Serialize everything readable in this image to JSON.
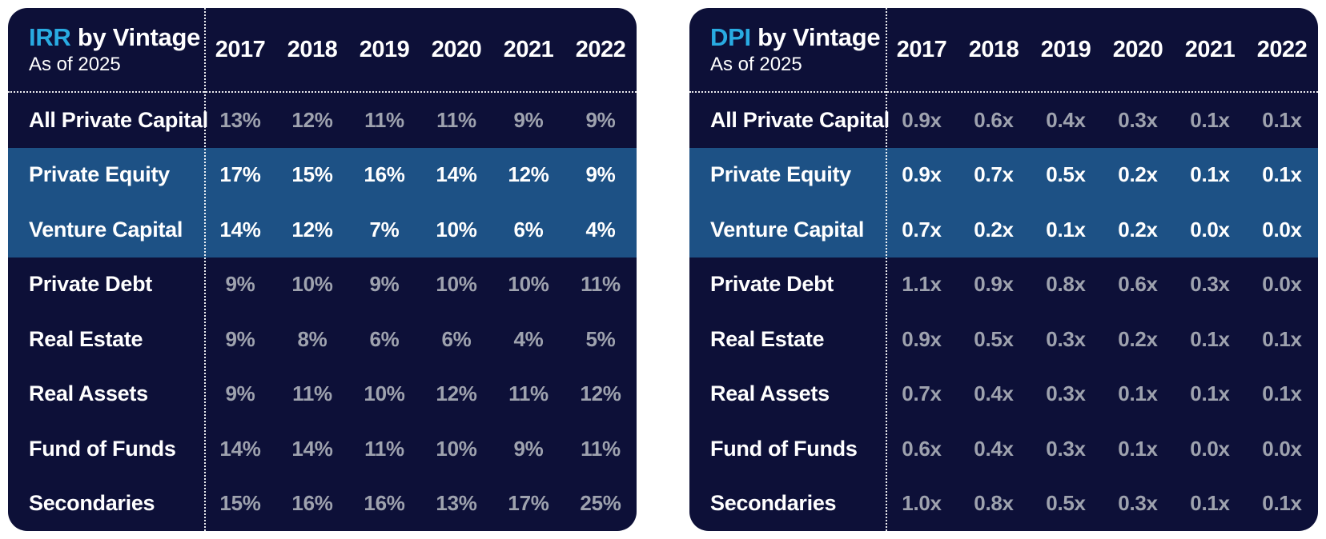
{
  "colors": {
    "page_background": "#ffffff",
    "card_background": "#0d1038",
    "highlight_row_background": "#1d5185",
    "title_accent": "#29abe2",
    "value_gray": "#9ea2ae",
    "text_white": "#ffffff"
  },
  "chart_data": [
    {
      "type": "table",
      "title": "IRR by Vintage",
      "title_accent": "IRR",
      "title_rest": "by Vintage",
      "subtitle": "As of 2025",
      "columns": [
        "2017",
        "2018",
        "2019",
        "2020",
        "2021",
        "2022"
      ],
      "rows": [
        {
          "label": "All Private Capital",
          "values": [
            "13%",
            "12%",
            "11%",
            "11%",
            "9%",
            "9%"
          ],
          "highlight": false
        },
        {
          "label": "Private Equity",
          "values": [
            "17%",
            "15%",
            "16%",
            "14%",
            "12%",
            "9%"
          ],
          "highlight": true
        },
        {
          "label": "Venture Capital",
          "values": [
            "14%",
            "12%",
            "7%",
            "10%",
            "6%",
            "4%"
          ],
          "highlight": true
        },
        {
          "label": "Private Debt",
          "values": [
            "9%",
            "10%",
            "9%",
            "10%",
            "10%",
            "11%"
          ],
          "highlight": false
        },
        {
          "label": "Real Estate",
          "values": [
            "9%",
            "8%",
            "6%",
            "6%",
            "4%",
            "5%"
          ],
          "highlight": false
        },
        {
          "label": "Real Assets",
          "values": [
            "9%",
            "11%",
            "10%",
            "12%",
            "11%",
            "12%"
          ],
          "highlight": false
        },
        {
          "label": "Fund of Funds",
          "values": [
            "14%",
            "14%",
            "11%",
            "10%",
            "9%",
            "11%"
          ],
          "highlight": false
        },
        {
          "label": "Secondaries",
          "values": [
            "15%",
            "16%",
            "16%",
            "13%",
            "17%",
            "25%"
          ],
          "highlight": false
        }
      ]
    },
    {
      "type": "table",
      "title": "DPI by Vintage",
      "title_accent": "DPI",
      "title_rest": "by Vintage",
      "subtitle": "As of 2025",
      "columns": [
        "2017",
        "2018",
        "2019",
        "2020",
        "2021",
        "2022"
      ],
      "rows": [
        {
          "label": "All Private Capital",
          "values": [
            "0.9x",
            "0.6x",
            "0.4x",
            "0.3x",
            "0.1x",
            "0.1x"
          ],
          "highlight": false
        },
        {
          "label": "Private Equity",
          "values": [
            "0.9x",
            "0.7x",
            "0.5x",
            "0.2x",
            "0.1x",
            "0.1x"
          ],
          "highlight": true
        },
        {
          "label": "Venture Capital",
          "values": [
            "0.7x",
            "0.2x",
            "0.1x",
            "0.2x",
            "0.0x",
            "0.0x"
          ],
          "highlight": true
        },
        {
          "label": "Private Debt",
          "values": [
            "1.1x",
            "0.9x",
            "0.8x",
            "0.6x",
            "0.3x",
            "0.0x"
          ],
          "highlight": false
        },
        {
          "label": "Real Estate",
          "values": [
            "0.9x",
            "0.5x",
            "0.3x",
            "0.2x",
            "0.1x",
            "0.1x"
          ],
          "highlight": false
        },
        {
          "label": "Real Assets",
          "values": [
            "0.7x",
            "0.4x",
            "0.3x",
            "0.1x",
            "0.1x",
            "0.1x"
          ],
          "highlight": false
        },
        {
          "label": "Fund of Funds",
          "values": [
            "0.6x",
            "0.4x",
            "0.3x",
            "0.1x",
            "0.0x",
            "0.0x"
          ],
          "highlight": false
        },
        {
          "label": "Secondaries",
          "values": [
            "1.0x",
            "0.8x",
            "0.5x",
            "0.3x",
            "0.1x",
            "0.1x"
          ],
          "highlight": false
        }
      ]
    }
  ]
}
